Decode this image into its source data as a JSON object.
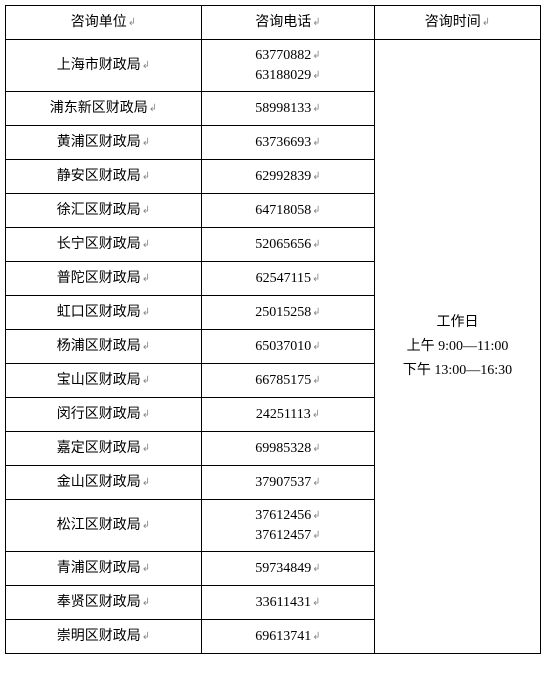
{
  "table": {
    "headers": {
      "unit": "咨询单位",
      "phone": "咨询电话",
      "time": "咨询时间"
    },
    "time_block": {
      "line1": "工作日",
      "line2": "上午 9:00—11:00",
      "line3": "下午 13:00—16:30"
    },
    "rows": [
      {
        "unit": "上海市财政局",
        "phones": [
          "63770882",
          "63188029"
        ]
      },
      {
        "unit": "浦东新区财政局",
        "phones": [
          "58998133"
        ]
      },
      {
        "unit": "黄浦区财政局",
        "phones": [
          "63736693"
        ]
      },
      {
        "unit": "静安区财政局",
        "phones": [
          "62992839"
        ]
      },
      {
        "unit": "徐汇区财政局",
        "phones": [
          "64718058"
        ]
      },
      {
        "unit": "长宁区财政局",
        "phones": [
          "52065656"
        ]
      },
      {
        "unit": "普陀区财政局",
        "phones": [
          "62547115"
        ]
      },
      {
        "unit": "虹口区财政局",
        "phones": [
          "25015258"
        ]
      },
      {
        "unit": "杨浦区财政局",
        "phones": [
          "65037010"
        ]
      },
      {
        "unit": "宝山区财政局",
        "phones": [
          "66785175"
        ]
      },
      {
        "unit": "闵行区财政局",
        "phones": [
          "24251113"
        ]
      },
      {
        "unit": "嘉定区财政局",
        "phones": [
          "69985328"
        ]
      },
      {
        "unit": "金山区财政局",
        "phones": [
          "37907537"
        ]
      },
      {
        "unit": "松江区财政局",
        "phones": [
          "37612456",
          "37612457"
        ]
      },
      {
        "unit": "青浦区财政局",
        "phones": [
          "59734849"
        ]
      },
      {
        "unit": "奉贤区财政局",
        "phones": [
          "33611431"
        ]
      },
      {
        "unit": "崇明区财政局",
        "phones": [
          "69613741"
        ]
      }
    ],
    "marker_glyph": "↲",
    "text_color": "#000000",
    "border_color": "#000000",
    "background": "#ffffff",
    "font_size": 14
  }
}
